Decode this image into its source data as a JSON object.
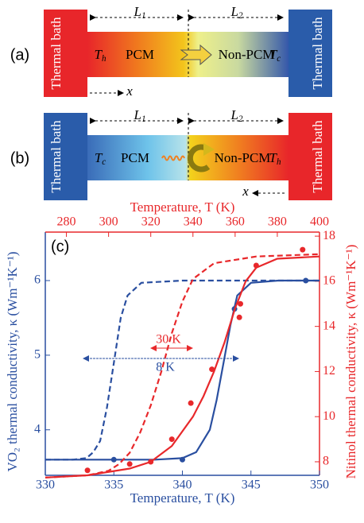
{
  "panels": [
    {
      "label": "(a)",
      "left_bath": "Thermal bath",
      "right_bath": "Thermal bath",
      "left_T": {
        "main": "T",
        "sub": "h"
      },
      "right_T": {
        "main": "T",
        "sub": "c"
      },
      "pcm": "PCM",
      "non_pcm": "Non-PCM",
      "L1": {
        "main": "L",
        "sub": "1"
      },
      "L2": {
        "main": "L",
        "sub": "2"
      },
      "x_label": "x"
    },
    {
      "label": "(b)",
      "left_bath": "Thermal bath",
      "right_bath": "Thermal bath",
      "left_T": {
        "main": "T",
        "sub": "c"
      },
      "right_T": {
        "main": "T",
        "sub": "h"
      },
      "pcm": "PCM",
      "non_pcm": "Non-PCM",
      "L1": {
        "main": "L",
        "sub": "1"
      },
      "L2": {
        "main": "L",
        "sub": "2"
      },
      "x_label": "x"
    }
  ],
  "chart_data": {
    "type": "line",
    "panel_label": "(c)",
    "xlabel": "Temperature, T (K)",
    "x2label": "Temperature, T (K)",
    "ylabel": "VO₂ thermal conductivity, κ (Wm⁻¹K⁻¹)",
    "y2label": "Nitinol thermal conductivity, κ (Wm⁻¹K⁻¹)",
    "xlim": [
      330,
      350
    ],
    "xticks": [
      330,
      335,
      340,
      345,
      350
    ],
    "x2lim": [
      270,
      400
    ],
    "x2ticks": [
      280,
      300,
      320,
      340,
      360,
      380,
      400
    ],
    "ylim": [
      3.39,
      6.65
    ],
    "yticks": [
      4,
      5,
      6
    ],
    "y2lim": [
      7.4,
      18.18
    ],
    "y2ticks": [
      8,
      10,
      12,
      14,
      16,
      18
    ],
    "annotations": [
      "30 K",
      "8 K"
    ],
    "series": [
      {
        "mark": "line",
        "style": "solid",
        "color": "#2a4fa0",
        "x": [
          330,
          335,
          338,
          340,
          341,
          342,
          342.5,
          343,
          343.5,
          344,
          345,
          347,
          350
        ],
        "values": [
          3.6,
          3.6,
          3.6,
          3.62,
          3.7,
          4.0,
          4.4,
          4.9,
          5.4,
          5.8,
          5.97,
          6.0,
          6.0
        ]
      },
      {
        "mark": "line",
        "style": "dashed",
        "color": "#2a4fa0",
        "x": [
          330,
          332,
          333,
          333.5,
          334,
          334.5,
          335,
          335.5,
          336,
          337,
          340,
          345,
          350
        ],
        "values": [
          3.6,
          3.6,
          3.62,
          3.7,
          3.85,
          4.3,
          4.9,
          5.5,
          5.8,
          5.97,
          6.0,
          6.0,
          6.0
        ]
      },
      {
        "mark": "scatter",
        "color": "#2a4fa0",
        "x": [
          335,
          340,
          343.8,
          349
        ],
        "values": [
          3.6,
          3.6,
          5.62,
          6.0
        ]
      },
      {
        "mark": "line",
        "style": "solid",
        "color": "#e8282b",
        "axis": "y2",
        "x": [
          270,
          290,
          310,
          320,
          330,
          340,
          345,
          350,
          355,
          360,
          365,
          370,
          380,
          400
        ],
        "values": [
          7.3,
          7.4,
          7.7,
          8.0,
          8.7,
          10.0,
          10.9,
          12.0,
          13.3,
          14.8,
          16.0,
          16.6,
          17.0,
          17.1
        ]
      },
      {
        "mark": "line",
        "style": "dashed",
        "color": "#e8282b",
        "axis": "y2",
        "x": [
          270,
          290,
          300,
          305,
          310,
          315,
          320,
          325,
          330,
          335,
          340,
          350,
          370,
          400
        ],
        "values": [
          7.3,
          7.4,
          7.6,
          7.9,
          8.4,
          9.3,
          10.5,
          12.0,
          13.7,
          15.1,
          16.1,
          16.8,
          17.1,
          17.2
        ]
      },
      {
        "mark": "scatter",
        "color": "#e8282b",
        "axis": "y2",
        "x": [
          290,
          310,
          320,
          330,
          339,
          349,
          362,
          362.5,
          370,
          392
        ],
        "values": [
          7.62,
          7.9,
          8.0,
          9.0,
          10.6,
          12.1,
          14.4,
          15.0,
          16.7,
          17.4
        ]
      }
    ]
  }
}
